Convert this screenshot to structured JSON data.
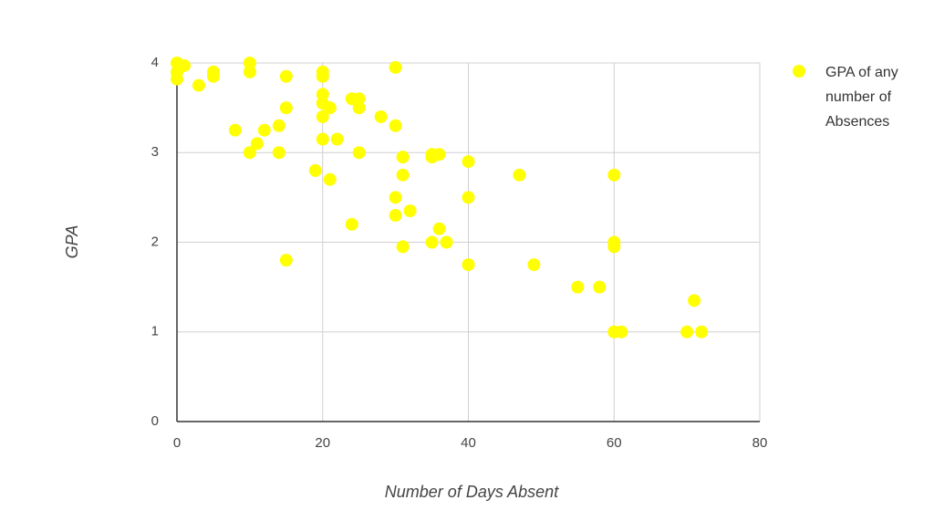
{
  "chart_data": {
    "type": "scatter",
    "x_label": "Number of Days Absent",
    "y_label": "GPA",
    "series": [
      {
        "name": "GPA of any number of Absences",
        "color": "#ffff00",
        "x": [
          0,
          0,
          0,
          1,
          3,
          5,
          5,
          8,
          10,
          10,
          10,
          11,
          12,
          14,
          14,
          15,
          15,
          15,
          19,
          20,
          20,
          20,
          20,
          20,
          20,
          21,
          21,
          22,
          24,
          24,
          25,
          25,
          25,
          28,
          30,
          30,
          30,
          30,
          31,
          31,
          31,
          32,
          35,
          35,
          35,
          36,
          36,
          37,
          40,
          40,
          40,
          47,
          49,
          55,
          58,
          60,
          60,
          60,
          60,
          61,
          70,
          71,
          72
        ],
        "values": [
          4.0,
          3.9,
          3.82,
          3.97,
          3.75,
          3.9,
          3.85,
          3.25,
          4.0,
          3.9,
          3.0,
          3.1,
          3.25,
          3.3,
          3.0,
          3.85,
          3.5,
          1.8,
          2.8,
          3.9,
          3.85,
          3.65,
          3.55,
          3.4,
          3.15,
          3.5,
          2.7,
          3.15,
          3.6,
          2.2,
          3.6,
          3.5,
          3.0,
          3.4,
          3.95,
          3.3,
          2.5,
          2.3,
          2.95,
          2.75,
          1.95,
          2.35,
          2.98,
          2.95,
          2.0,
          2.98,
          2.15,
          2.0,
          2.9,
          2.5,
          1.75,
          2.75,
          1.75,
          1.5,
          1.5,
          2.75,
          2.0,
          1.95,
          1.0,
          1.0,
          1.0,
          1.35,
          1.0
        ]
      }
    ],
    "xlim": [
      0,
      80
    ],
    "xticks": [
      0,
      20,
      40,
      60,
      80
    ],
    "ylim": [
      0,
      4
    ],
    "yticks": [
      0,
      1,
      2,
      3,
      4
    ],
    "grid": true,
    "legend": "right"
  }
}
